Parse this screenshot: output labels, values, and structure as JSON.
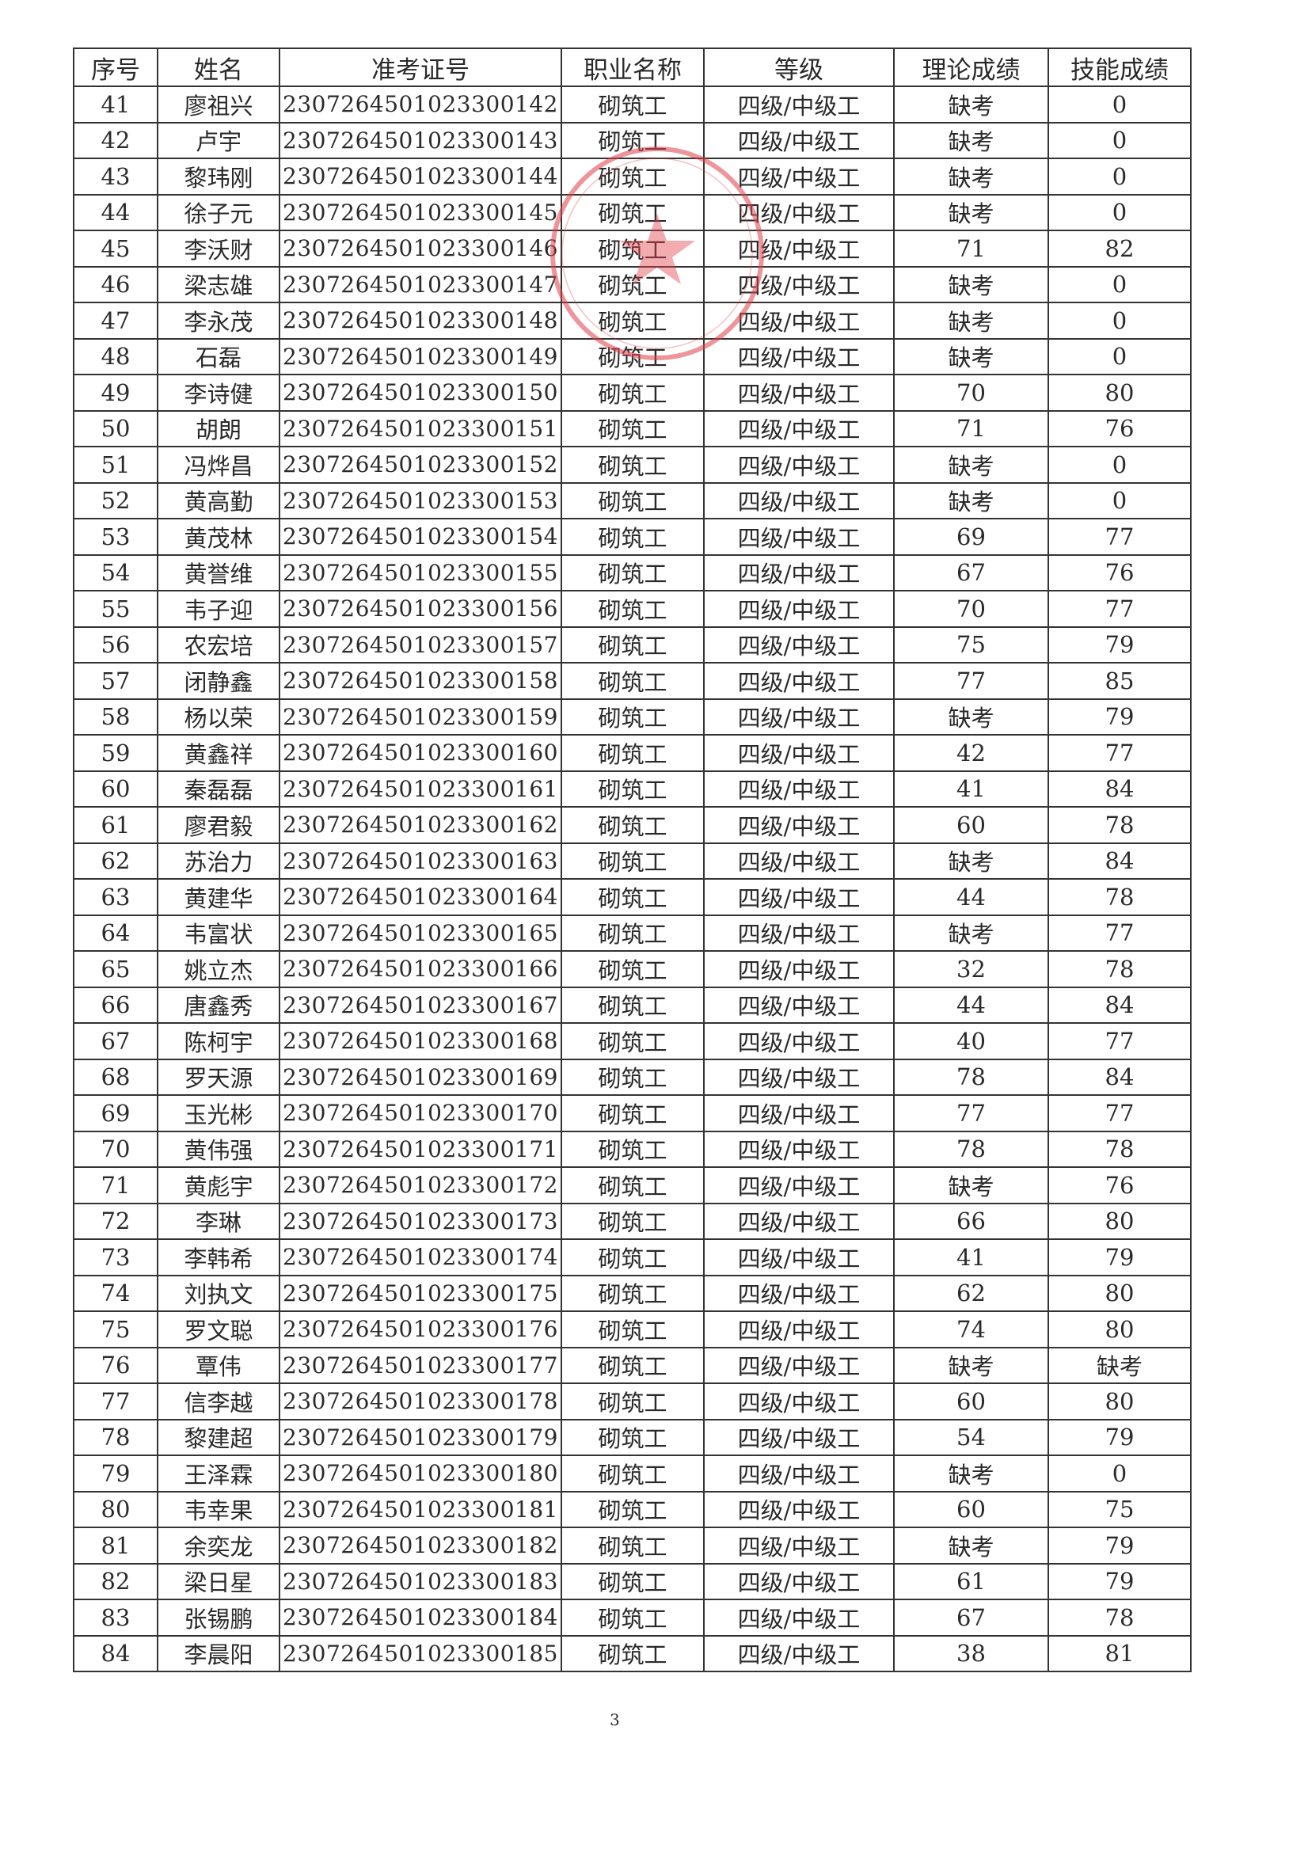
{
  "headers": [
    "序号",
    "姓名",
    "准考证号",
    "职业名称",
    "等级",
    "理论成绩",
    "技能成绩"
  ],
  "rows": [
    [
      "41",
      "廖祖兴",
      "230726450102330014​2",
      "砌筑工",
      "四级/中级工",
      "缺考",
      "0"
    ],
    [
      "42",
      "卢宇",
      "2307264501023300143",
      "砌筑工",
      "四级/中级工",
      "缺考",
      "0"
    ],
    [
      "43",
      "黎玮刚",
      "2307264501023300144",
      "砌筑工",
      "四级/中级工",
      "缺考",
      "0"
    ],
    [
      "44",
      "徐子元",
      "2307264501023300145",
      "砌筑工",
      "四级/中级工",
      "缺考",
      "0"
    ],
    [
      "45",
      "李沃财",
      "2307264501023300146",
      "砌筑工",
      "四级/中级工",
      "71",
      "82"
    ],
    [
      "46",
      "梁志雄",
      "2307264501023300147",
      "砌筑工",
      "四级/中级工",
      "缺考",
      "0"
    ],
    [
      "47",
      "李永茂",
      "2307264501023300148",
      "砌筑工",
      "四级/中级工",
      "缺考",
      "0"
    ],
    [
      "48",
      "石磊",
      "2307264501023300149",
      "砌筑工",
      "四级/中级工",
      "缺考",
      "0"
    ],
    [
      "49",
      "李诗健",
      "2307264501023300150",
      "砌筑工",
      "四级/中级工",
      "70",
      "80"
    ],
    [
      "50",
      "胡朗",
      "2307264501023300151",
      "砌筑工",
      "四级/中级工",
      "71",
      "76"
    ],
    [
      "51",
      "冯烨昌",
      "2307264501023300152",
      "砌筑工",
      "四级/中级工",
      "缺考",
      "0"
    ],
    [
      "52",
      "黄高勤",
      "2307264501023300153",
      "砌筑工",
      "四级/中级工",
      "缺考",
      "0"
    ],
    [
      "53",
      "黄茂林",
      "2307264501023300154",
      "砌筑工",
      "四级/中级工",
      "69",
      "77"
    ],
    [
      "54",
      "黄誉维",
      "2307264501023300155",
      "砌筑工",
      "四级/中级工",
      "67",
      "76"
    ],
    [
      "55",
      "韦子迎",
      "2307264501023300156",
      "砌筑工",
      "四级/中级工",
      "70",
      "77"
    ],
    [
      "56",
      "农宏培",
      "2307264501023300157",
      "砌筑工",
      "四级/中级工",
      "75",
      "79"
    ],
    [
      "57",
      "闭静鑫",
      "2307264501023300158",
      "砌筑工",
      "四级/中级工",
      "77",
      "85"
    ],
    [
      "58",
      "杨以荣",
      "2307264501023300159",
      "砌筑工",
      "四级/中级工",
      "缺考",
      "79"
    ],
    [
      "59",
      "黄鑫祥",
      "2307264501023300160",
      "砌筑工",
      "四级/中级工",
      "42",
      "77"
    ],
    [
      "60",
      "秦磊磊",
      "2307264501023300161",
      "砌筑工",
      "四级/中级工",
      "41",
      "84"
    ],
    [
      "61",
      "廖君毅",
      "2307264501023300162",
      "砌筑工",
      "四级/中级工",
      "60",
      "78"
    ],
    [
      "62",
      "苏治力",
      "2307264501023300163",
      "砌筑工",
      "四级/中级工",
      "缺考",
      "84"
    ],
    [
      "63",
      "黄建华",
      "2307264501023300164",
      "砌筑工",
      "四级/中级工",
      "44",
      "78"
    ],
    [
      "64",
      "韦富状",
      "2307264501023300165",
      "砌筑工",
      "四级/中级工",
      "缺考",
      "77"
    ],
    [
      "65",
      "姚立杰",
      "2307264501023300166",
      "砌筑工",
      "四级/中级工",
      "32",
      "78"
    ],
    [
      "66",
      "唐鑫秀",
      "2307264501023300167",
      "砌筑工",
      "四级/中级工",
      "44",
      "84"
    ],
    [
      "67",
      "陈柯宇",
      "2307264501023300168",
      "砌筑工",
      "四级/中级工",
      "40",
      "77"
    ],
    [
      "68",
      "罗天源",
      "2307264501023300169",
      "砌筑工",
      "四级/中级工",
      "78",
      "84"
    ],
    [
      "69",
      "玉光彬",
      "2307264501023300170",
      "砌筑工",
      "四级/中级工",
      "77",
      "77"
    ],
    [
      "70",
      "黄伟强",
      "2307264501023300171",
      "砌筑工",
      "四级/中级工",
      "78",
      "78"
    ],
    [
      "71",
      "黄彪宇",
      "2307264501023300172",
      "砌筑工",
      "四级/中级工",
      "缺考",
      "76"
    ],
    [
      "72",
      "李琳",
      "2307264501023300173",
      "砌筑工",
      "四级/中级工",
      "66",
      "80"
    ],
    [
      "73",
      "李韩希",
      "2307264501023300174",
      "砌筑工",
      "四级/中级工",
      "41",
      "79"
    ],
    [
      "74",
      "刘执文",
      "2307264501023300175",
      "砌筑工",
      "四级/中级工",
      "62",
      "80"
    ],
    [
      "75",
      "罗文聪",
      "2307264501023300176",
      "砌筑工",
      "四级/中级工",
      "74",
      "80"
    ],
    [
      "76",
      "覃伟",
      "2307264501023300177",
      "砌筑工",
      "四级/中级工",
      "缺考",
      "缺考"
    ],
    [
      "77",
      "信李越",
      "2307264501023300178",
      "砌筑工",
      "四级/中级工",
      "60",
      "80"
    ],
    [
      "78",
      "黎建超",
      "2307264501023300179",
      "砌筑工",
      "四级/中级工",
      "54",
      "79"
    ],
    [
      "79",
      "王泽霖",
      "2307264501023300180",
      "砌筑工",
      "四级/中级工",
      "缺考",
      "0"
    ],
    [
      "80",
      "韦幸果",
      "2307264501023300181",
      "砌筑工",
      "四级/中级工",
      "60",
      "75"
    ],
    [
      "81",
      "余奕龙",
      "2307264501023300182",
      "砌筑工",
      "四级/中级工",
      "缺考",
      "79"
    ],
    [
      "82",
      "梁日星",
      "2307264501023300183",
      "砌筑工",
      "四级/中级工",
      "61",
      "79"
    ],
    [
      "83",
      "张锡鹏",
      "2307264501023300184",
      "砌筑工",
      "四级/中级工",
      "67",
      "78"
    ],
    [
      "84",
      "李晨阳",
      "2307264501023300185",
      "砌筑工",
      "四级/中级工",
      "38",
      "81"
    ]
  ],
  "page_number": "3",
  "stamp_color": "#e0404a"
}
